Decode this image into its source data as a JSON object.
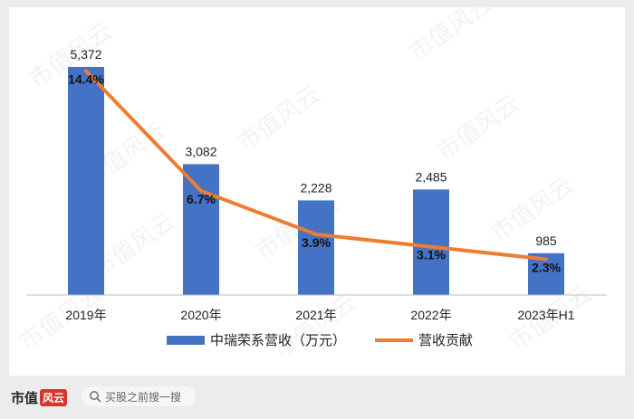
{
  "chart_data": {
    "type": "bar",
    "categories": [
      "2019年",
      "2020年",
      "2021年",
      "2022年",
      "2023年H1"
    ],
    "series": [
      {
        "name": "中瑞荣系营收（万元）",
        "kind": "bar",
        "values": [
          5372,
          3082,
          2228,
          2485,
          985
        ],
        "labels": [
          "5,372",
          "3,082",
          "2,228",
          "2,485",
          "985"
        ],
        "color": "#4472c4"
      },
      {
        "name": "营收贡献",
        "kind": "line",
        "values": [
          14.4,
          6.7,
          3.9,
          3.1,
          2.3
        ],
        "labels": [
          "14.4%",
          "6.7%",
          "3.9%",
          "3.1%",
          "2.3%"
        ],
        "color": "#ed7d31"
      }
    ],
    "y_range_bars": [
      0,
      6000
    ],
    "y_range_line": [
      0,
      16
    ],
    "grid": false,
    "legend_position": "bottom"
  },
  "watermark": "市值风云",
  "footer": {
    "brand_text": "市值",
    "brand_mark": "风云",
    "search_placeholder": "买股之前搜一搜"
  }
}
